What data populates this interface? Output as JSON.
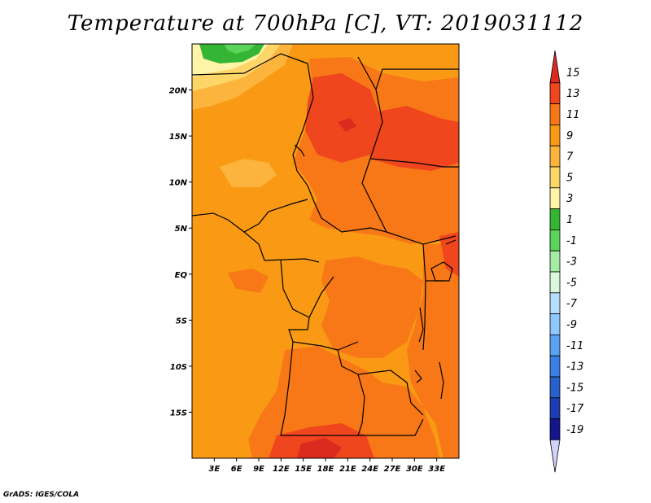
{
  "title": "Temperature at 700hPa [C], VT: 2019031112",
  "credit": "GrADS: IGES/COLA",
  "map": {
    "lon_range": [
      0,
      36
    ],
    "lat_range": [
      -20,
      25
    ],
    "lon_ticks": [
      {
        "lon": 3,
        "label": "3E"
      },
      {
        "lon": 6,
        "label": "6E"
      },
      {
        "lon": 9,
        "label": "9E"
      },
      {
        "lon": 12,
        "label": "12E"
      },
      {
        "lon": 15,
        "label": "15E"
      },
      {
        "lon": 18,
        "label": "18E"
      },
      {
        "lon": 21,
        "label": "21E"
      },
      {
        "lon": 24,
        "label": "24E"
      },
      {
        "lon": 27,
        "label": "27E"
      },
      {
        "lon": 30,
        "label": "30E"
      },
      {
        "lon": 33,
        "label": "33E"
      }
    ],
    "lat_ticks": [
      {
        "lat": 20,
        "label": "20N"
      },
      {
        "lat": 15,
        "label": "15N"
      },
      {
        "lat": 10,
        "label": "10N"
      },
      {
        "lat": 5,
        "label": "5N"
      },
      {
        "lat": 0,
        "label": "EQ"
      },
      {
        "lat": -5,
        "label": "5S"
      },
      {
        "lat": -10,
        "label": "10S"
      },
      {
        "lat": -15,
        "label": "15S"
      }
    ]
  },
  "colorbar": {
    "levels": [
      "15",
      "13",
      "11",
      "9",
      "7",
      "5",
      "3",
      "1",
      "-1",
      "-3",
      "-5",
      "-7",
      "-9",
      "-11",
      "-13",
      "-15",
      "-17",
      "-19"
    ],
    "colors": [
      "#dc2a1e",
      "#f0461e",
      "#f87818",
      "#fa9a14",
      "#fcb43c",
      "#fed668",
      "#fff4a8",
      "#34b634",
      "#5ad45a",
      "#a6eca6",
      "#dcf8dc",
      "#b6dcff",
      "#8ec8fe",
      "#5aa2f2",
      "#3c80e6",
      "#2860cc",
      "#1e3cb4",
      "#14148c",
      "#d2d2f8"
    ]
  }
}
